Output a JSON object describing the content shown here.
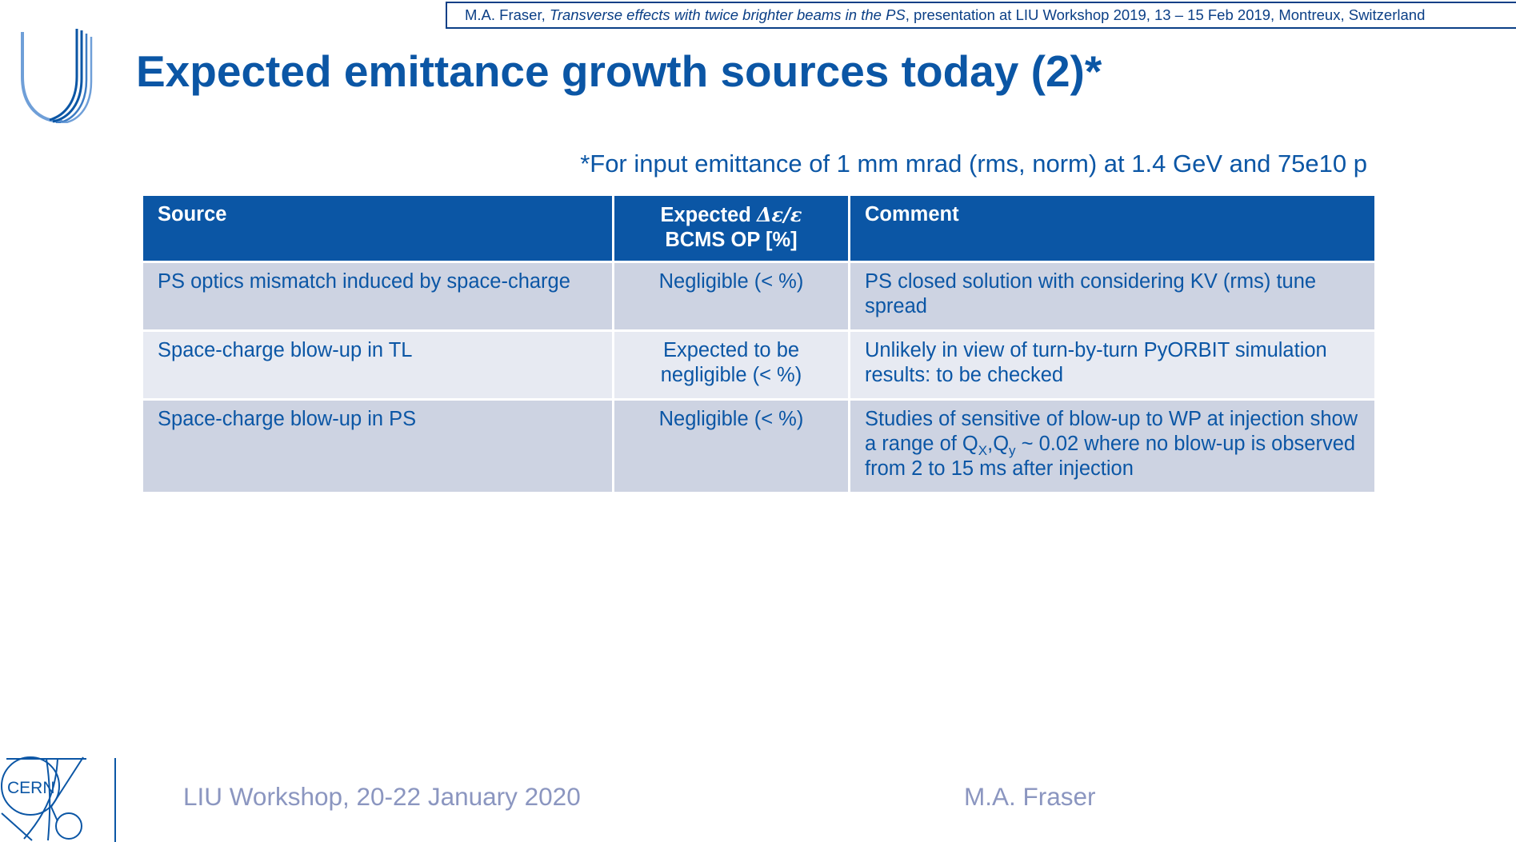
{
  "citation": {
    "author": "M.A. Fraser, ",
    "talk_title": "Transverse effects with twice brighter beams in the PS",
    "details": ", presentation at LIU Workshop 2019, 13 – 15 Feb 2019, Montreux, Switzerland"
  },
  "title": "Expected emittance growth sources today (2)*",
  "footnote": "*For input emittance of 1 mm mrad (rms, norm) at 1.4 GeV and 75e10 p",
  "table": {
    "headers": {
      "source": "Source",
      "expected_prefix": "Expected ",
      "expected_symbol": "Δε/ε",
      "expected_line2": "BCMS OP [%]",
      "comment": "Comment"
    },
    "rows": [
      {
        "source": "PS optics mismatch induced by space-charge",
        "expected": "Negligible (< %)",
        "comment": "PS closed solution with considering KV (rms) tune spread"
      },
      {
        "source": "Space-charge blow-up in TL",
        "expected": "Expected to be negligible (< %)",
        "comment": "Unlikely in view of turn-by-turn PyORBIT simulation results: to be checked"
      },
      {
        "source": "Space-charge blow-up in PS",
        "expected": "Negligible (< %)",
        "comment": {
          "part1": "Studies of sensitive of blow-up to WP at injection show a range of Q",
          "sub_x": "X",
          "comma": ",Q",
          "sub_y": "y",
          "part2": " ~ 0.02 where no blow-up is observed from 2 to 15 ms after injection"
        }
      }
    ]
  },
  "footer": {
    "logo_text": "CERN",
    "event": "LIU Workshop, 20-22 January 2020",
    "author": "M.A. Fraser"
  },
  "colors": {
    "primary_blue": "#0b56a5",
    "header_fill": "#0b56a5",
    "row_odd": "#cdd3e2",
    "row_even": "#e7eaf2",
    "footer_text": "#8b96c0",
    "logo_light_blue": "#6f9fd8"
  },
  "icons": {
    "top_left": "liu-u-logo",
    "bottom_left": "cern-logo"
  }
}
